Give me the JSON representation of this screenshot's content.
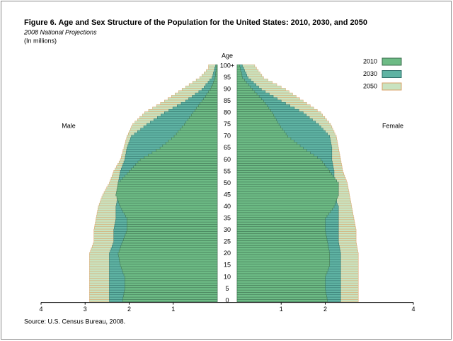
{
  "chart_data": {
    "type": "pyramid",
    "title": "Figure 6. Age and Sex Structure of the Population for the United States:  2010, 2030, and 2050",
    "subtitle": "2008 National Projections",
    "units": "(In millions)",
    "age_label": "Age",
    "left_label": "Male",
    "right_label": "Female",
    "source": "Source: U.S. Census Bureau, 2008.",
    "categories": [
      "0",
      null,
      null,
      null,
      null,
      "5",
      null,
      null,
      null,
      null,
      "10",
      null,
      null,
      null,
      null,
      "15",
      null,
      null,
      null,
      null,
      "20",
      null,
      null,
      null,
      null,
      "25",
      null,
      null,
      null,
      null,
      "30",
      null,
      null,
      null,
      null,
      "35",
      null,
      null,
      null,
      null,
      "40",
      null,
      null,
      null,
      null,
      "45",
      null,
      null,
      null,
      null,
      "50",
      null,
      null,
      null,
      null,
      "55",
      null,
      null,
      null,
      null,
      "60",
      null,
      null,
      null,
      null,
      "65",
      null,
      null,
      null,
      null,
      "70",
      null,
      null,
      null,
      null,
      "75",
      null,
      null,
      null,
      null,
      "80",
      null,
      null,
      null,
      null,
      "85",
      null,
      null,
      null,
      null,
      "90",
      null,
      null,
      null,
      null,
      "95",
      null,
      null,
      null,
      null,
      "100+"
    ],
    "xlim": [
      0,
      4
    ],
    "xticks_left": [
      1,
      2,
      3,
      4
    ],
    "xticks_right": [
      1,
      2,
      4
    ],
    "series": [
      {
        "name": "2010",
        "color": "#6dbb85",
        "edgecolor": "#3d6e4f",
        "male": [
          2.15,
          2.14,
          2.13,
          2.12,
          2.11,
          2.1,
          2.1,
          2.1,
          2.1,
          2.1,
          2.1,
          2.12,
          2.14,
          2.16,
          2.18,
          2.2,
          2.21,
          2.22,
          2.23,
          2.24,
          2.25,
          2.23,
          2.21,
          2.19,
          2.17,
          2.15,
          2.13,
          2.11,
          2.09,
          2.07,
          2.05,
          2.05,
          2.05,
          2.05,
          2.05,
          2.05,
          2.08,
          2.11,
          2.14,
          2.17,
          2.2,
          2.22,
          2.24,
          2.26,
          2.28,
          2.3,
          2.29,
          2.28,
          2.27,
          2.26,
          2.25,
          2.2,
          2.15,
          2.1,
          2.05,
          2.0,
          1.95,
          1.9,
          1.85,
          1.8,
          1.75,
          1.66,
          1.57,
          1.48,
          1.39,
          1.3,
          1.24,
          1.17,
          1.11,
          1.04,
          0.98,
          0.93,
          0.89,
          0.84,
          0.8,
          0.75,
          0.71,
          0.67,
          0.63,
          0.59,
          0.55,
          0.51,
          0.47,
          0.43,
          0.39,
          0.35,
          0.31,
          0.27,
          0.24,
          0.2,
          0.16,
          0.14,
          0.11,
          0.09,
          0.07,
          0.05,
          0.04,
          0.04,
          0.03,
          0.03,
          0.03
        ],
        "female": [
          2.05,
          2.04,
          2.03,
          2.02,
          2.01,
          2.0,
          2.0,
          2.0,
          2.0,
          2.0,
          2.0,
          2.02,
          2.04,
          2.06,
          2.08,
          2.1,
          2.1,
          2.1,
          2.1,
          2.1,
          2.1,
          2.09,
          2.08,
          2.07,
          2.06,
          2.05,
          2.04,
          2.03,
          2.02,
          2.01,
          2.0,
          2.0,
          2.0,
          2.0,
          2.0,
          2.0,
          2.04,
          2.08,
          2.12,
          2.16,
          2.2,
          2.22,
          2.24,
          2.26,
          2.28,
          2.3,
          2.3,
          2.3,
          2.3,
          2.3,
          2.3,
          2.26,
          2.22,
          2.18,
          2.14,
          2.1,
          2.06,
          2.02,
          1.98,
          1.94,
          1.9,
          1.82,
          1.74,
          1.66,
          1.58,
          1.5,
          1.43,
          1.36,
          1.29,
          1.22,
          1.15,
          1.11,
          1.07,
          1.03,
          0.99,
          0.95,
          0.92,
          0.89,
          0.86,
          0.83,
          0.8,
          0.76,
          0.72,
          0.68,
          0.64,
          0.6,
          0.55,
          0.5,
          0.45,
          0.4,
          0.35,
          0.3,
          0.26,
          0.21,
          0.17,
          0.12,
          0.11,
          0.1,
          0.08,
          0.07,
          0.06
        ]
      },
      {
        "name": "2030",
        "color": "#5fb3a3",
        "edgecolor": "#2f6f6a",
        "male": [
          2.45,
          2.45,
          2.45,
          2.45,
          2.45,
          2.45,
          2.45,
          2.45,
          2.45,
          2.45,
          2.45,
          2.45,
          2.45,
          2.45,
          2.45,
          2.45,
          2.45,
          2.45,
          2.45,
          2.45,
          2.45,
          2.43,
          2.41,
          2.39,
          2.37,
          2.35,
          2.35,
          2.35,
          2.35,
          2.35,
          2.35,
          2.34,
          2.33,
          2.32,
          2.31,
          2.3,
          2.3,
          2.3,
          2.3,
          2.3,
          2.3,
          2.29,
          2.28,
          2.27,
          2.26,
          2.25,
          2.25,
          2.25,
          2.25,
          2.25,
          2.25,
          2.24,
          2.23,
          2.22,
          2.21,
          2.2,
          2.18,
          2.16,
          2.14,
          2.12,
          2.1,
          2.09,
          2.08,
          2.07,
          2.06,
          2.05,
          2.03,
          2.01,
          1.99,
          1.97,
          1.95,
          1.88,
          1.81,
          1.74,
          1.67,
          1.6,
          1.52,
          1.44,
          1.36,
          1.28,
          1.2,
          1.1,
          1.01,
          0.91,
          0.82,
          0.72,
          0.65,
          0.57,
          0.5,
          0.42,
          0.35,
          0.3,
          0.26,
          0.21,
          0.17,
          0.12,
          0.1,
          0.09,
          0.07,
          0.06,
          0.04
        ],
        "female": [
          2.35,
          2.35,
          2.35,
          2.35,
          2.35,
          2.35,
          2.35,
          2.35,
          2.35,
          2.35,
          2.35,
          2.35,
          2.35,
          2.35,
          2.35,
          2.35,
          2.35,
          2.35,
          2.35,
          2.35,
          2.35,
          2.34,
          2.33,
          2.32,
          2.31,
          2.3,
          2.3,
          2.3,
          2.3,
          2.3,
          2.3,
          2.3,
          2.3,
          2.3,
          2.3,
          2.3,
          2.3,
          2.3,
          2.3,
          2.3,
          2.3,
          2.28,
          2.26,
          2.24,
          2.22,
          2.2,
          2.2,
          2.2,
          2.2,
          2.2,
          2.2,
          2.2,
          2.2,
          2.2,
          2.2,
          2.2,
          2.19,
          2.18,
          2.17,
          2.16,
          2.15,
          2.15,
          2.15,
          2.15,
          2.15,
          2.15,
          2.14,
          2.13,
          2.12,
          2.11,
          2.1,
          2.05,
          2.0,
          1.95,
          1.9,
          1.85,
          1.78,
          1.71,
          1.64,
          1.57,
          1.5,
          1.4,
          1.3,
          1.2,
          1.1,
          1.0,
          0.91,
          0.82,
          0.73,
          0.64,
          0.55,
          0.49,
          0.43,
          0.37,
          0.31,
          0.25,
          0.22,
          0.2,
          0.17,
          0.15,
          0.12
        ]
      },
      {
        "name": "2050",
        "color": "#c9e3c0",
        "edgecolor": "#d9a066",
        "male": [
          2.9,
          2.9,
          2.9,
          2.9,
          2.9,
          2.9,
          2.9,
          2.9,
          2.9,
          2.9,
          2.9,
          2.9,
          2.9,
          2.9,
          2.9,
          2.9,
          2.9,
          2.9,
          2.9,
          2.9,
          2.9,
          2.88,
          2.86,
          2.84,
          2.82,
          2.8,
          2.8,
          2.8,
          2.8,
          2.8,
          2.8,
          2.79,
          2.78,
          2.77,
          2.76,
          2.75,
          2.74,
          2.73,
          2.72,
          2.71,
          2.7,
          2.68,
          2.66,
          2.64,
          2.62,
          2.6,
          2.57,
          2.54,
          2.51,
          2.48,
          2.45,
          2.43,
          2.41,
          2.39,
          2.37,
          2.35,
          2.32,
          2.29,
          2.26,
          2.23,
          2.2,
          2.18,
          2.17,
          2.15,
          2.14,
          2.12,
          2.11,
          2.09,
          2.08,
          2.06,
          2.05,
          2.02,
          2.0,
          1.97,
          1.95,
          1.92,
          1.87,
          1.81,
          1.76,
          1.7,
          1.65,
          1.56,
          1.47,
          1.38,
          1.29,
          1.2,
          1.12,
          1.04,
          0.96,
          0.88,
          0.8,
          0.72,
          0.64,
          0.56,
          0.48,
          0.4,
          0.35,
          0.3,
          0.25,
          0.2,
          0.2
        ],
        "female": [
          2.75,
          2.75,
          2.75,
          2.75,
          2.75,
          2.75,
          2.75,
          2.75,
          2.75,
          2.75,
          2.75,
          2.75,
          2.75,
          2.75,
          2.75,
          2.75,
          2.75,
          2.75,
          2.75,
          2.75,
          2.75,
          2.74,
          2.73,
          2.72,
          2.71,
          2.7,
          2.7,
          2.7,
          2.7,
          2.7,
          2.7,
          2.69,
          2.68,
          2.67,
          2.66,
          2.65,
          2.64,
          2.63,
          2.62,
          2.61,
          2.6,
          2.59,
          2.58,
          2.57,
          2.56,
          2.55,
          2.54,
          2.53,
          2.52,
          2.51,
          2.5,
          2.48,
          2.46,
          2.44,
          2.42,
          2.4,
          2.39,
          2.38,
          2.37,
          2.36,
          2.35,
          2.34,
          2.33,
          2.32,
          2.31,
          2.3,
          2.29,
          2.28,
          2.27,
          2.26,
          2.25,
          2.22,
          2.2,
          2.17,
          2.15,
          2.12,
          2.08,
          2.03,
          1.99,
          1.94,
          1.9,
          1.82,
          1.74,
          1.66,
          1.58,
          1.5,
          1.42,
          1.34,
          1.26,
          1.18,
          1.1,
          1.0,
          0.9,
          0.8,
          0.7,
          0.6,
          0.56,
          0.52,
          0.48,
          0.44,
          0.4
        ]
      }
    ]
  }
}
